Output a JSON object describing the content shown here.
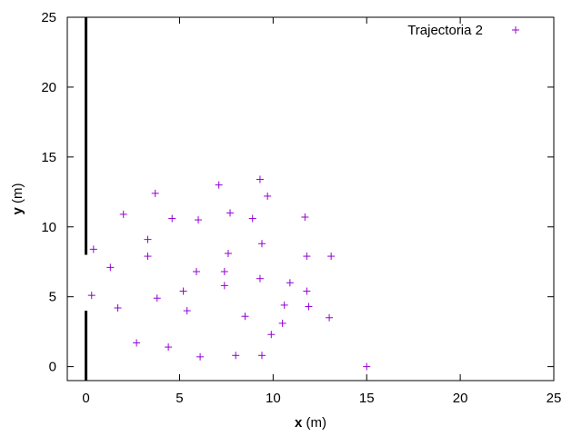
{
  "chart_data": {
    "type": "scatter",
    "title": "",
    "xlabel_var": "x",
    "xlabel_unit": "(m)",
    "ylabel_var": "y",
    "ylabel_unit": "(m)",
    "xlim": [
      -1,
      25
    ],
    "ylim": [
      -1,
      25
    ],
    "xticks": [
      0,
      5,
      10,
      15,
      20,
      25
    ],
    "yticks": [
      0,
      5,
      10,
      15,
      20,
      25
    ],
    "grid": false,
    "legend_position": "top-right",
    "marker": "plus",
    "series": [
      {
        "name": "Trajectoria 2",
        "color": "#9400d3",
        "points": [
          [
            0.4,
            8.4
          ],
          [
            1.3,
            7.1
          ],
          [
            0.3,
            5.1
          ],
          [
            1.7,
            4.2
          ],
          [
            2.7,
            1.7
          ],
          [
            2.0,
            10.9
          ],
          [
            3.3,
            9.1
          ],
          [
            3.3,
            7.9
          ],
          [
            3.7,
            12.4
          ],
          [
            3.8,
            4.9
          ],
          [
            4.4,
            1.4
          ],
          [
            4.6,
            10.6
          ],
          [
            5.2,
            5.4
          ],
          [
            5.4,
            4.0
          ],
          [
            5.9,
            6.8
          ],
          [
            6.0,
            10.5
          ],
          [
            6.1,
            0.7
          ],
          [
            7.1,
            13.0
          ],
          [
            7.4,
            6.8
          ],
          [
            7.4,
            5.8
          ],
          [
            7.6,
            8.1
          ],
          [
            7.7,
            11.0
          ],
          [
            8.0,
            0.8
          ],
          [
            8.5,
            3.6
          ],
          [
            8.9,
            10.6
          ],
          [
            9.3,
            13.4
          ],
          [
            9.3,
            6.3
          ],
          [
            9.4,
            8.8
          ],
          [
            9.4,
            0.8
          ],
          [
            9.7,
            12.2
          ],
          [
            9.9,
            2.3
          ],
          [
            10.5,
            3.1
          ],
          [
            10.6,
            4.4
          ],
          [
            10.9,
            6.0
          ],
          [
            11.7,
            10.7
          ],
          [
            11.8,
            7.9
          ],
          [
            11.8,
            5.4
          ],
          [
            11.9,
            4.3
          ],
          [
            13.0,
            3.5
          ],
          [
            13.1,
            7.9
          ],
          [
            15.0,
            0.0
          ]
        ]
      }
    ],
    "wall_color": "#000000",
    "walls": [
      {
        "x": 0,
        "y_from": 8,
        "y_to": 25
      },
      {
        "x": 0,
        "y_from": -1,
        "y_to": 4
      }
    ]
  }
}
